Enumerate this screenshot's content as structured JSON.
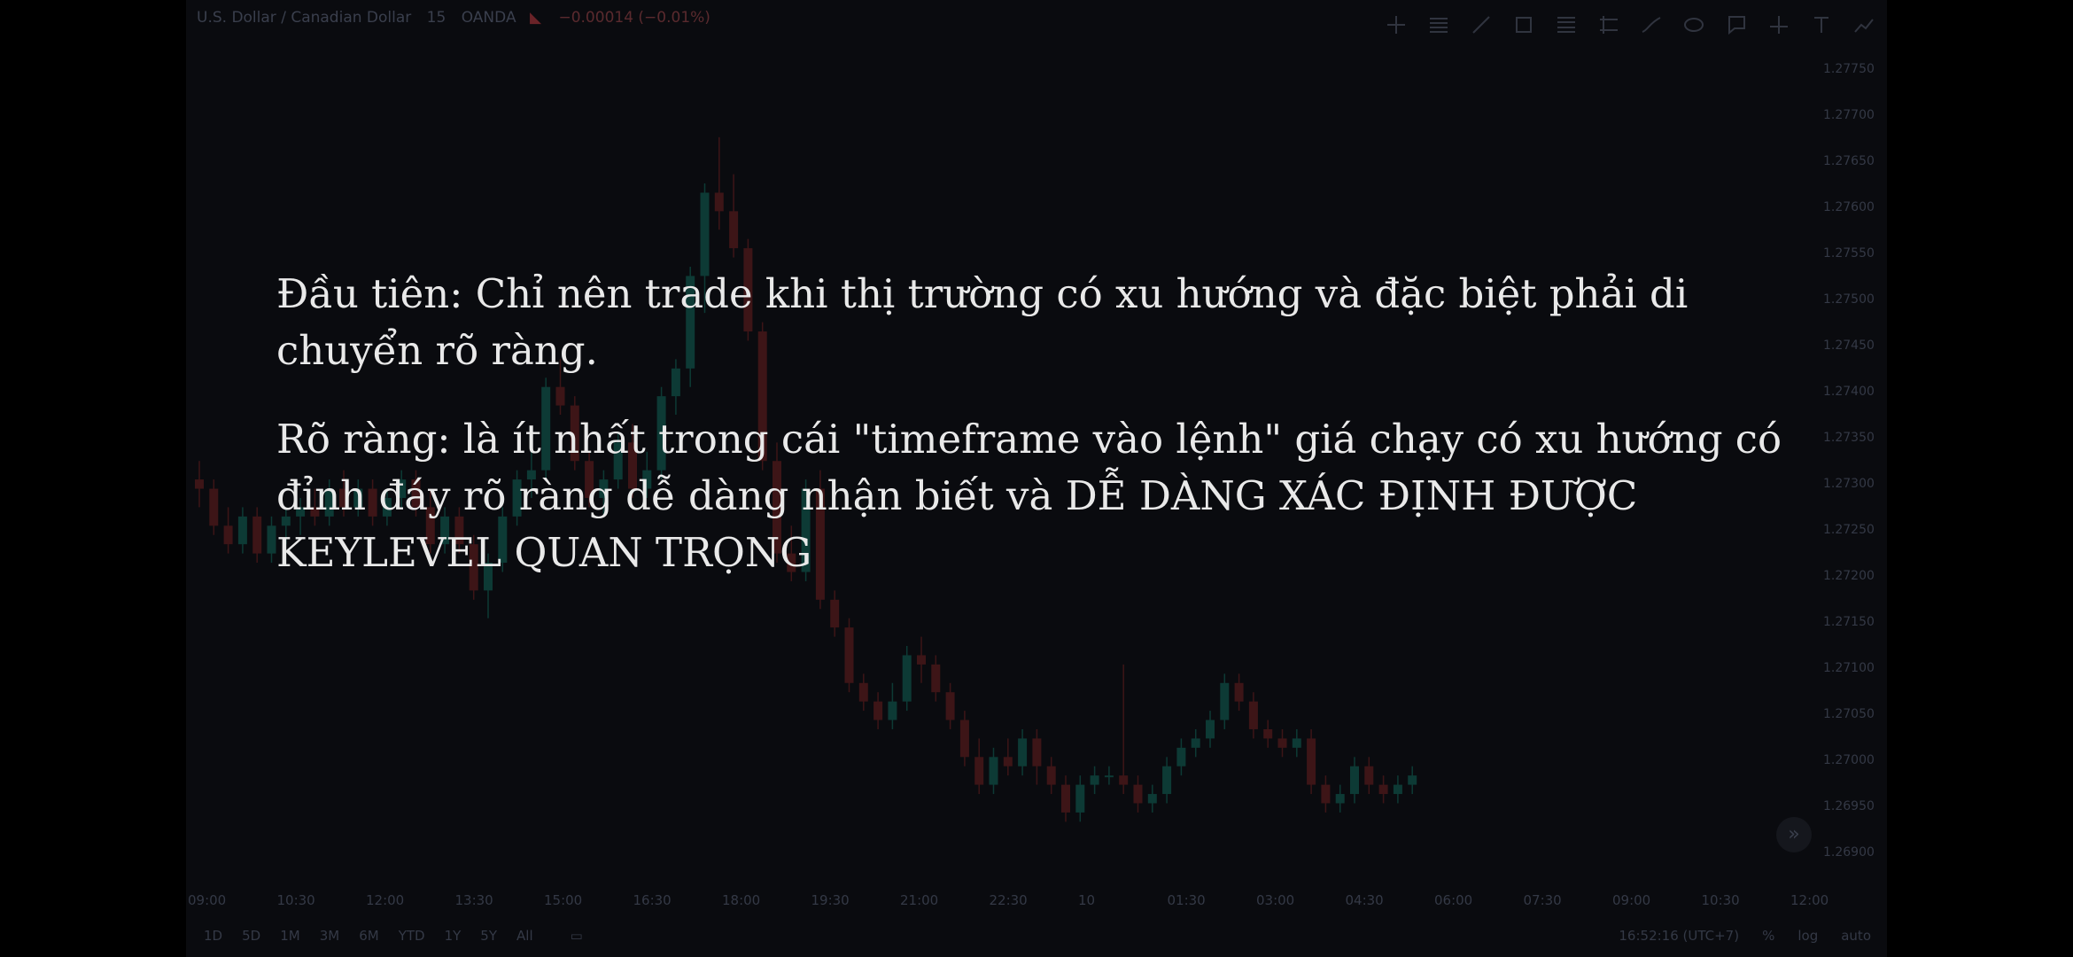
{
  "header": {
    "symbol": "U.S. Dollar / Canadian Dollar",
    "interval": "15",
    "source": "OANDA",
    "change": "−0.00014 (−0.01%)"
  },
  "toolbar": {
    "icons": [
      "crosshair-icon",
      "horizontal-lines-icon",
      "trend-line-icon",
      "rectangle-icon",
      "fib-retracement-icon",
      "parallel-channel-icon",
      "brush-icon",
      "ellipse-icon",
      "callout-icon",
      "long-position-icon",
      "text-icon",
      "forecast-icon"
    ]
  },
  "price_axis": {
    "ticks": [
      "1.27750",
      "1.27700",
      "1.27650",
      "1.27600",
      "1.27550",
      "1.27500",
      "1.27450",
      "1.27400",
      "1.27350",
      "1.27300",
      "1.27250",
      "1.27200",
      "1.27150",
      "1.27100",
      "1.27050",
      "1.27000",
      "1.26950",
      "1.26900"
    ]
  },
  "time_axis": {
    "ticks": [
      "09:00",
      "10:30",
      "12:00",
      "13:30",
      "15:00",
      "16:30",
      "18:00",
      "19:30",
      "21:00",
      "22:30",
      "10",
      "01:30",
      "03:00",
      "04:30",
      "06:00",
      "07:30",
      "09:00",
      "10:30",
      "12:00"
    ]
  },
  "range_bar": [
    "1D",
    "5D",
    "1M",
    "3M",
    "6M",
    "YTD",
    "1Y",
    "5Y",
    "All"
  ],
  "status": {
    "clock": "16:52:16 (UTC+7)",
    "percent": "%",
    "log": "log",
    "auto": "auto"
  },
  "overlay": {
    "paragraph1": "Đầu tiên: Chỉ nên trade khi thị trường có xu hướng và đặc biệt phải di chuyển rõ ràng.",
    "paragraph2": "Rõ ràng: là ít nhất trong cái \"timeframe vào lệnh\" giá chạy có xu hướng có đỉnh đáy rõ ràng dễ dàng nhận biết và DỄ DÀNG XÁC ĐỊNH ĐƯỢC KEYLEVEL QUAN TRỌNG"
  },
  "colors": {
    "up": "#0d3a35",
    "down": "#3d1517",
    "background": "#0a0b0f"
  },
  "chart_data": {
    "type": "candlestick",
    "ylim": [
      1.2687,
      1.2778
    ],
    "candles": [
      [
        1.273,
        1.2732,
        1.2727,
        1.2729
      ],
      [
        1.2729,
        1.273,
        1.2724,
        1.2725
      ],
      [
        1.2725,
        1.2727,
        1.2722,
        1.2723
      ],
      [
        1.2723,
        1.2727,
        1.2722,
        1.2726
      ],
      [
        1.2726,
        1.2727,
        1.2721,
        1.2722
      ],
      [
        1.2722,
        1.2726,
        1.2721,
        1.2725
      ],
      [
        1.2725,
        1.2727,
        1.2723,
        1.2726
      ],
      [
        1.2726,
        1.2728,
        1.2724,
        1.2727
      ],
      [
        1.2727,
        1.2729,
        1.2725,
        1.2726
      ],
      [
        1.2726,
        1.273,
        1.2725,
        1.2729
      ],
      [
        1.2729,
        1.2731,
        1.2726,
        1.2727
      ],
      [
        1.2727,
        1.273,
        1.2726,
        1.2729
      ],
      [
        1.2729,
        1.273,
        1.2725,
        1.2726
      ],
      [
        1.2726,
        1.2729,
        1.2725,
        1.2728
      ],
      [
        1.2728,
        1.2731,
        1.2727,
        1.273
      ],
      [
        1.273,
        1.2731,
        1.2726,
        1.2727
      ],
      [
        1.2727,
        1.2729,
        1.2722,
        1.2723
      ],
      [
        1.2723,
        1.2727,
        1.2722,
        1.2726
      ],
      [
        1.2726,
        1.2727,
        1.2722,
        1.2723
      ],
      [
        1.2723,
        1.2724,
        1.2717,
        1.2718
      ],
      [
        1.2718,
        1.2722,
        1.2715,
        1.2721
      ],
      [
        1.2721,
        1.2727,
        1.272,
        1.2726
      ],
      [
        1.2726,
        1.2731,
        1.2725,
        1.273
      ],
      [
        1.273,
        1.2733,
        1.2728,
        1.2731
      ],
      [
        1.2731,
        1.2741,
        1.273,
        1.274
      ],
      [
        1.274,
        1.2743,
        1.2737,
        1.2738
      ],
      [
        1.2738,
        1.2739,
        1.2731,
        1.2732
      ],
      [
        1.2732,
        1.2733,
        1.2727,
        1.2728
      ],
      [
        1.2728,
        1.2731,
        1.2726,
        1.273
      ],
      [
        1.273,
        1.2735,
        1.2729,
        1.2734
      ],
      [
        1.2734,
        1.2736,
        1.2728,
        1.2729
      ],
      [
        1.2729,
        1.2733,
        1.2728,
        1.2731
      ],
      [
        1.2731,
        1.274,
        1.273,
        1.2739
      ],
      [
        1.2739,
        1.2743,
        1.2737,
        1.2742
      ],
      [
        1.2742,
        1.2753,
        1.274,
        1.2752
      ],
      [
        1.2752,
        1.2762,
        1.2748,
        1.2761
      ],
      [
        1.2761,
        1.2767,
        1.2757,
        1.2759
      ],
      [
        1.2759,
        1.2763,
        1.2754,
        1.2755
      ],
      [
        1.2755,
        1.2756,
        1.2745,
        1.2746
      ],
      [
        1.2746,
        1.2747,
        1.2731,
        1.2732
      ],
      [
        1.2732,
        1.2734,
        1.2721,
        1.2722
      ],
      [
        1.2722,
        1.2725,
        1.2719,
        1.272
      ],
      [
        1.272,
        1.273,
        1.2719,
        1.2729
      ],
      [
        1.2729,
        1.2731,
        1.2716,
        1.2717
      ],
      [
        1.2717,
        1.2718,
        1.2713,
        1.2714
      ],
      [
        1.2714,
        1.2715,
        1.2707,
        1.2708
      ],
      [
        1.2708,
        1.2709,
        1.2705,
        1.2706
      ],
      [
        1.2706,
        1.2707,
        1.2703,
        1.2704
      ],
      [
        1.2704,
        1.2708,
        1.2703,
        1.2706
      ],
      [
        1.2706,
        1.2712,
        1.2705,
        1.2711
      ],
      [
        1.2711,
        1.2713,
        1.2708,
        1.271
      ],
      [
        1.271,
        1.2711,
        1.2706,
        1.2707
      ],
      [
        1.2707,
        1.2708,
        1.2703,
        1.2704
      ],
      [
        1.2704,
        1.2705,
        1.2699,
        1.27
      ],
      [
        1.27,
        1.2702,
        1.2696,
        1.2697
      ],
      [
        1.2697,
        1.2701,
        1.2696,
        1.27
      ],
      [
        1.27,
        1.2702,
        1.2698,
        1.2699
      ],
      [
        1.2699,
        1.2703,
        1.2698,
        1.2702
      ],
      [
        1.2702,
        1.2703,
        1.2697,
        1.2699
      ],
      [
        1.2699,
        1.27,
        1.2696,
        1.2697
      ],
      [
        1.2697,
        1.2698,
        1.2693,
        1.2694
      ],
      [
        1.2694,
        1.2698,
        1.2693,
        1.2697
      ],
      [
        1.2697,
        1.2699,
        1.2696,
        1.2698
      ],
      [
        1.2698,
        1.2699,
        1.2697,
        1.2698
      ],
      [
        1.2698,
        1.271,
        1.2696,
        1.2697
      ],
      [
        1.2697,
        1.2698,
        1.2694,
        1.2695
      ],
      [
        1.2695,
        1.2697,
        1.2694,
        1.2696
      ],
      [
        1.2696,
        1.27,
        1.2695,
        1.2699
      ],
      [
        1.2699,
        1.2702,
        1.2698,
        1.2701
      ],
      [
        1.2701,
        1.2703,
        1.27,
        1.2702
      ],
      [
        1.2702,
        1.2705,
        1.2701,
        1.2704
      ],
      [
        1.2704,
        1.2709,
        1.2703,
        1.2708
      ],
      [
        1.2708,
        1.2709,
        1.2705,
        1.2706
      ],
      [
        1.2706,
        1.2707,
        1.2702,
        1.2703
      ],
      [
        1.2703,
        1.2704,
        1.2701,
        1.2702
      ],
      [
        1.2702,
        1.2703,
        1.27,
        1.2701
      ],
      [
        1.2701,
        1.2703,
        1.27,
        1.2702
      ],
      [
        1.2702,
        1.2703,
        1.2696,
        1.2697
      ],
      [
        1.2697,
        1.2698,
        1.2694,
        1.2695
      ],
      [
        1.2695,
        1.2697,
        1.2694,
        1.2696
      ],
      [
        1.2696,
        1.27,
        1.2695,
        1.2699
      ],
      [
        1.2699,
        1.27,
        1.2696,
        1.2697
      ],
      [
        1.2697,
        1.2698,
        1.2695,
        1.2696
      ],
      [
        1.2696,
        1.2698,
        1.2695,
        1.2697
      ],
      [
        1.2697,
        1.2699,
        1.2696,
        1.2698
      ]
    ]
  }
}
